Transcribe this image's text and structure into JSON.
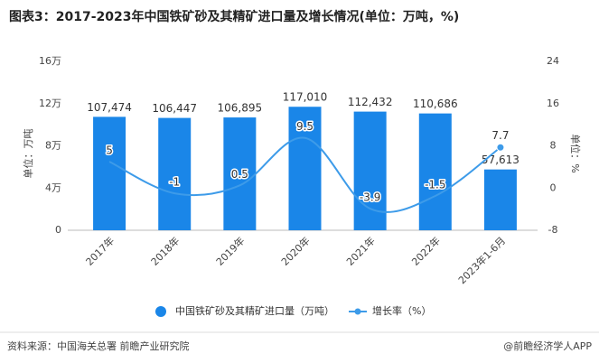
{
  "chart_data": {
    "type": "bar-line",
    "title": "图表3：2017-2023年中国铁矿砂及其精矿进口量及增长情况(单位：万吨，%)",
    "y_label": "单位：万吨",
    "y2_label": "单位：%",
    "categories": [
      "2017年",
      "2018年",
      "2019年",
      "2020年",
      "2021年",
      "2022年",
      "2023年1-6月"
    ],
    "series": [
      {
        "name": "中国铁矿砂及其精矿进口量（万吨）",
        "type": "bar",
        "color": "#1a86e8",
        "values": [
          107474,
          106447,
          106895,
          117010,
          112432,
          110686,
          57613
        ],
        "value_labels": [
          "107,474",
          "106,447",
          "106,895",
          "117,010",
          "112,432",
          "110,686",
          "57,613"
        ]
      },
      {
        "name": "增长率（%）",
        "type": "line",
        "color": "#3d9be9",
        "axis": "y2",
        "values": [
          5,
          -1,
          0.5,
          9.5,
          -3.9,
          -1.5,
          7.7
        ]
      }
    ],
    "ylim": [
      0,
      160000
    ],
    "yticks": [
      0,
      {
        "value": 40000,
        "label": "4万"
      },
      {
        "value": 80000,
        "label": "8万"
      },
      {
        "value": 120000,
        "label": "12万"
      },
      {
        "value": 160000,
        "label": "16万"
      }
    ],
    "y2lim": [
      -8,
      24
    ],
    "y2ticks": [
      -8,
      0,
      8,
      16,
      24
    ],
    "source": "资料来源：中国海关总署 前瞻产业研究院",
    "credit": "@前瞻经济学人APP"
  }
}
